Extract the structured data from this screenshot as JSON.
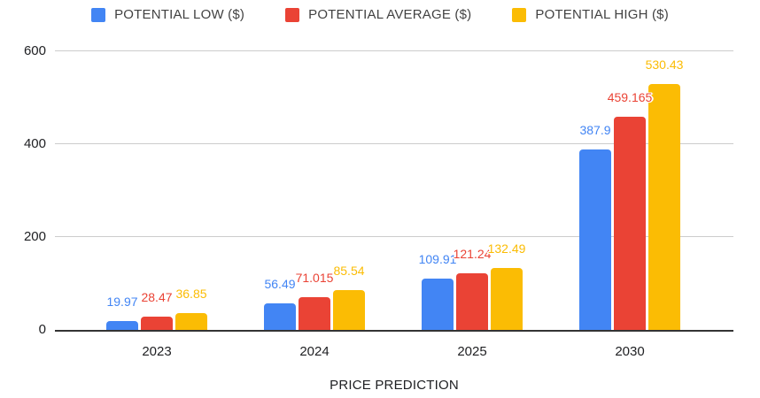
{
  "chart_data": {
    "type": "bar",
    "title": "",
    "xlabel": "PRICE PREDICTION",
    "ylabel": "",
    "categories": [
      "2023",
      "2024",
      "2025",
      "2030"
    ],
    "series": [
      {
        "name": "POTENTIAL LOW ($)",
        "color": "#4285F4",
        "values": [
          19.97,
          56.49,
          109.91,
          387.9
        ],
        "labels": [
          "19.97",
          "56.49",
          "109.91",
          "387.9"
        ]
      },
      {
        "name": "POTENTIAL AVERAGE ($)",
        "color": "#EA4335",
        "values": [
          28.47,
          71.015,
          121.24,
          459.165
        ],
        "labels": [
          "28.47",
          "71.015",
          "121.24",
          "459.165"
        ]
      },
      {
        "name": "POTENTIAL HIGH ($)",
        "color": "#FBBC04",
        "values": [
          36.85,
          85.54,
          132.49,
          530.43
        ],
        "labels": [
          "36.85",
          "85.54",
          "132.49",
          "530.43"
        ]
      }
    ],
    "y_ticks": [
      0,
      200,
      400,
      600
    ],
    "y_tick_labels": [
      "0",
      "200",
      "400",
      "600"
    ],
    "ylim": [
      0,
      600
    ],
    "grid": true,
    "legend_position": "top",
    "colors": {
      "gridline": "#cccccc",
      "baseline": "#333333",
      "axis_text": "#202124",
      "legend_text": "#424242"
    }
  }
}
